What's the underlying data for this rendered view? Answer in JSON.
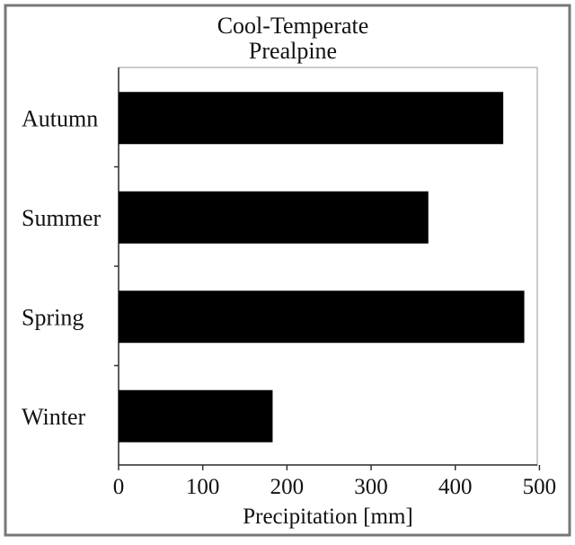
{
  "chart_data": {
    "type": "bar",
    "orientation": "horizontal",
    "title": "Cool-Temperate",
    "subtitle": "Prealpine",
    "categories": [
      "Autumn",
      "Summer",
      "Spring",
      "Winter"
    ],
    "values": [
      457,
      368,
      482,
      183
    ],
    "xlabel": "Precipitation [mm]",
    "ylabel": "",
    "xlim": [
      0,
      500
    ],
    "xticks": [
      0,
      100,
      200,
      300,
      400,
      500
    ],
    "xtick_labels": [
      "0",
      "100",
      "200",
      "300",
      "400",
      "500"
    ],
    "grid": false,
    "legend": "none",
    "bar_color": "#000000"
  }
}
